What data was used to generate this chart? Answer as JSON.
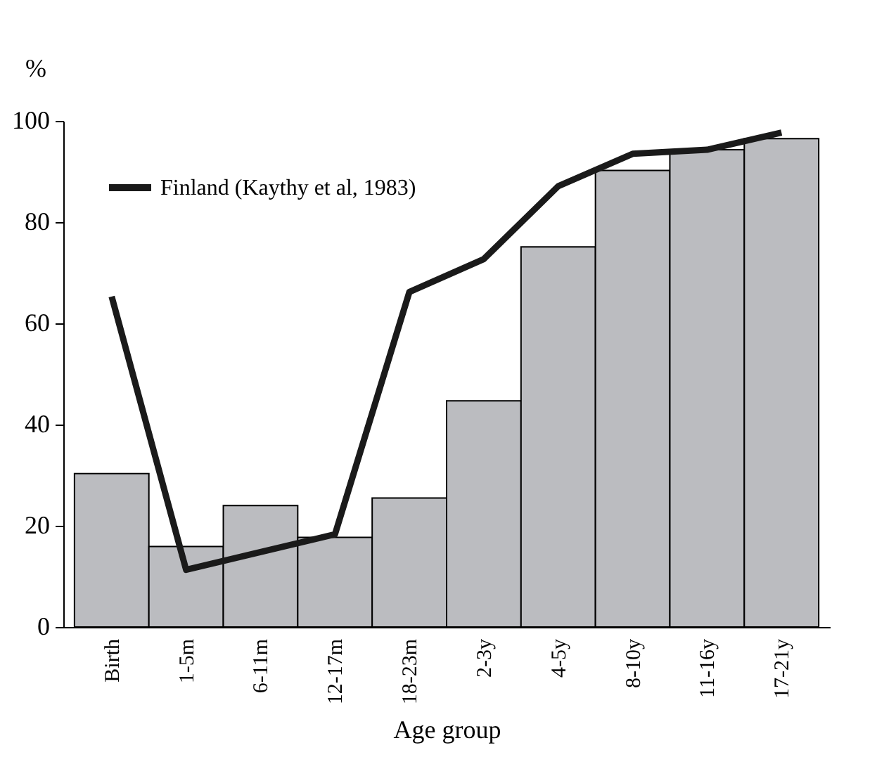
{
  "chart_data": {
    "type": "bar",
    "xlabel": "Age group",
    "ylabel": "%",
    "categories": [
      "Birth",
      "1-5m",
      "6-11m",
      "12-17m",
      "18-23m",
      "2-3y",
      "4-5y",
      "8-10y",
      "11-16y",
      "17-21y"
    ],
    "series": [
      {
        "color": "#bbbcc0",
        "values": [
          30.3,
          15.9,
          24.0,
          17.7,
          25.5,
          44.7,
          75.1,
          90.2,
          94.3,
          96.5
        ]
      },
      {
        "type": "line",
        "name": "Finland (Kaythy et al, 1983)",
        "color": "#1a1a1a",
        "values": [
          65.3,
          11.3,
          14.8,
          18.3,
          66.2,
          72.7,
          87.1,
          93.5,
          94.3,
          97.7
        ]
      }
    ],
    "ylim": [
      0,
      100
    ],
    "yticks": [
      0,
      20,
      40,
      60,
      80,
      100
    ],
    "grid": false,
    "legend": "top left",
    "marker": "none",
    "line_style": "solid"
  }
}
